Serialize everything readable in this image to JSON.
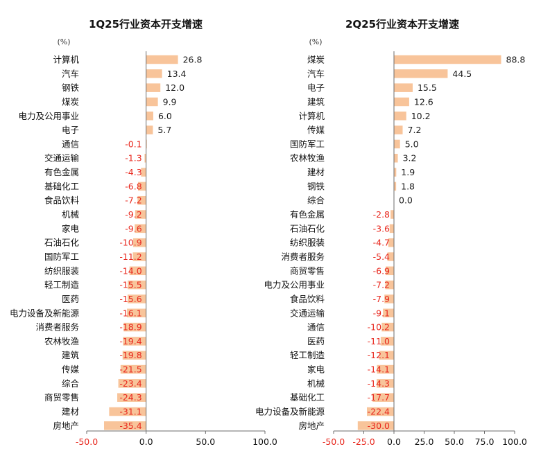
{
  "bar_color": "#F8C49A",
  "neg_label_color": "#E8281E",
  "pos_label_color": "#1a1a1a",
  "axis_color": "#6b6b6b",
  "chart_data": [
    {
      "type": "bar",
      "orientation": "horizontal",
      "title": "1Q25行业资本开支增速",
      "unit_label": "(%)",
      "xlim": [
        -50,
        100
      ],
      "xticks": [
        "-50.0",
        "0.0",
        "50.0",
        "100.0"
      ],
      "categories": [
        "计算机",
        "汽车",
        "钢铁",
        "煤炭",
        "电力及公用事业",
        "电子",
        "通信",
        "交通运输",
        "有色金属",
        "基础化工",
        "食品饮料",
        "机械",
        "家电",
        "石油石化",
        "国防军工",
        "纺织服装",
        "轻工制造",
        "医药",
        "电力设备及新能源",
        "消费者服务",
        "农林牧渔",
        "建筑",
        "传媒",
        "综合",
        "商贸零售",
        "建材",
        "房地产"
      ],
      "values": [
        26.8,
        13.4,
        12.0,
        9.9,
        6.0,
        5.7,
        -0.1,
        -1.3,
        -4.3,
        -6.8,
        -7.2,
        -9.2,
        -9.6,
        -10.9,
        -11.2,
        -14.0,
        -15.5,
        -15.6,
        -16.1,
        -18.9,
        -19.4,
        -19.8,
        -21.5,
        -23.4,
        -24.3,
        -31.1,
        -35.4
      ],
      "value_labels": [
        "26.8",
        "13.4",
        "12.0",
        "9.9",
        "6.0",
        "5.7",
        "-0.1",
        "-1.3",
        "-4.3",
        "-6.8",
        "-7.2",
        "-9.2",
        "-9.6",
        "-10.9",
        "-11.2",
        "-14.0",
        "-15.5",
        "-15.6",
        "-16.1",
        "-18.9",
        "-19.4",
        "-19.8",
        "-21.5",
        "-23.4",
        "-24.3",
        "-31.1",
        "-35.4"
      ]
    },
    {
      "type": "bar",
      "orientation": "horizontal",
      "title": "2Q25行业资本开支增速",
      "unit_label": "(%)",
      "xlim": [
        -50,
        100
      ],
      "xticks": [
        "-50.0",
        "-25.0",
        "0.0",
        "25.0",
        "50.0",
        "75.0",
        "100.0"
      ],
      "categories": [
        "煤炭",
        "汽车",
        "电子",
        "建筑",
        "计算机",
        "传媒",
        "国防军工",
        "农林牧渔",
        "建材",
        "钢铁",
        "综合",
        "有色金属",
        "石油石化",
        "纺织服装",
        "消费者服务",
        "商贸零售",
        "电力及公用事业",
        "食品饮料",
        "交通运输",
        "通信",
        "医药",
        "轻工制造",
        "家电",
        "机械",
        "基础化工",
        "电力设备及新能源",
        "房地产"
      ],
      "values": [
        88.8,
        44.5,
        15.5,
        12.6,
        10.2,
        7.2,
        5.0,
        3.2,
        1.9,
        1.8,
        0.0,
        -2.8,
        -3.6,
        -4.7,
        -5.4,
        -6.9,
        -7.2,
        -7.9,
        -9.1,
        -10.2,
        -11.0,
        -12.1,
        -14.1,
        -14.3,
        -17.7,
        -22.4,
        -30.0
      ],
      "value_labels": [
        "88.8",
        "44.5",
        "15.5",
        "12.6",
        "10.2",
        "7.2",
        "5.0",
        "3.2",
        "1.9",
        "1.8",
        "0.0",
        "-2.8",
        "-3.6",
        "-4.7",
        "-5.4",
        "-6.9",
        "-7.2",
        "-7.9",
        "-9.1",
        "-10.2",
        "-11.0",
        "-12.1",
        "-14.1",
        "-14.3",
        "-17.7",
        "-22.4",
        "-30.0"
      ]
    }
  ]
}
